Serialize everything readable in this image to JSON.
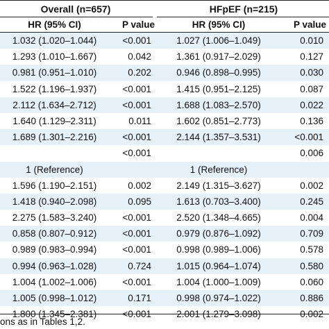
{
  "header": {
    "overall": "Overall (n=657)",
    "hfpef": "HFpEF (n=215)",
    "col_hr": "HR (95% CI)",
    "col_p": "P value"
  },
  "rows": [
    {
      "hr1": "1.032 (1.020–1.044)",
      "p1": "<0.001",
      "hr2": "1.027 (1.006–1.049)",
      "p2": "0.010"
    },
    {
      "hr1": "1.293 (1.010–1.667)",
      "p1": "0.042",
      "hr2": "1.361 (0.917–2.029)",
      "p2": "0.127"
    },
    {
      "hr1": "0.981 (0.951–1.010)",
      "p1": "0.202",
      "hr2": "0.946 (0.898–0.995)",
      "p2": "0.030"
    },
    {
      "hr1": "1.522 (1.196–1.937)",
      "p1": "<0.001",
      "hr2": "1.415 (0.951–2.125)",
      "p2": "0.087"
    },
    {
      "hr1": "2.112 (1.634–2.712)",
      "p1": "<0.001",
      "hr2": "1.688 (1.083–2.570)",
      "p2": "0.022"
    },
    {
      "hr1": "1.640 (1.129–2.311)",
      "p1": "0.011",
      "hr2": "1.602 (0.851–2.773)",
      "p2": "0.136"
    },
    {
      "hr1": "1.689 (1.301–2.216)",
      "p1": "<0.001",
      "hr2": "2.144 (1.357–3.531)",
      "p2": "<0.001"
    },
    {
      "hr1": "",
      "p1": "<0.001",
      "hr2": "",
      "p2": "0.006"
    },
    {
      "hr1": "1 (Reference)",
      "p1": "",
      "hr2": "1 (Reference)",
      "p2": ""
    },
    {
      "hr1": "1.596 (1.190–2.151)",
      "p1": "0.002",
      "hr2": "2.149 (1.315–3.627)",
      "p2": "0.002"
    },
    {
      "hr1": "1.418 (0.940–2.098)",
      "p1": "0.095",
      "hr2": "1.613 (0.703–3.400)",
      "p2": "0.245"
    },
    {
      "hr1": "2.275 (1.583–3.240)",
      "p1": "<0.001",
      "hr2": "2.520 (1.348–4.665)",
      "p2": "0.004"
    },
    {
      "hr1": "0.858 (0.807–0.912)",
      "p1": "<0.001",
      "hr2": "0.979 (0.876–1.092)",
      "p2": "0.709"
    },
    {
      "hr1": "0.989 (0.983–0.994)",
      "p1": "<0.001",
      "hr2": "0.998 (0.989–1.006)",
      "p2": "0.578"
    },
    {
      "hr1": "0.994 (0.963–1.028)",
      "p1": "0.724",
      "hr2": "1.015 (0.964–1.074)",
      "p2": "0.580"
    },
    {
      "hr1": "1.004 (1.002–1.006)",
      "p1": "<0.001",
      "hr2": "1.004 (1.000–1.009)",
      "p2": "0.060"
    },
    {
      "hr1": "1.005 (0.998–1.012)",
      "p1": "0.171",
      "hr2": "0.998 (0.974–1.022)",
      "p2": "0.886"
    },
    {
      "hr1": "1.800 (1.345–2.381)",
      "p1": "<0.001",
      "hr2": "2.001 (1.279–3.098)",
      "p2": "0.002"
    }
  ],
  "footnote": "ons as in Tables 1,2.",
  "colors": {
    "stripe": "#e6f0f8",
    "rule": "#222222"
  }
}
